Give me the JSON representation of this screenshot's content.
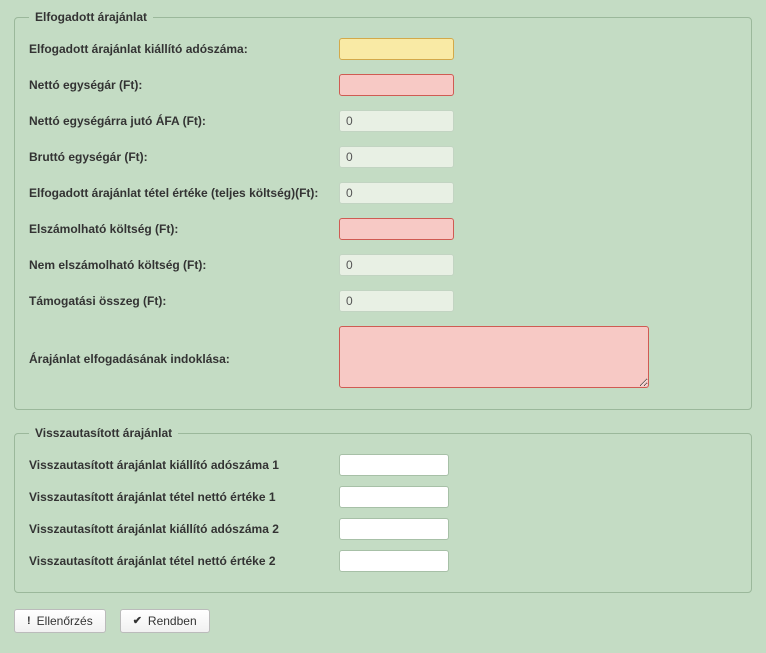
{
  "accepted": {
    "legend": "Elfogadott árajánlat",
    "fields": {
      "issuer_tax": {
        "label": "Elfogadott árajánlat kiállító adószáma:",
        "value": ""
      },
      "net_unit": {
        "label": "Nettó egységár (Ft):",
        "value": ""
      },
      "net_vat": {
        "label": "Nettó egységárra jutó ÁFA (Ft):",
        "value": "0"
      },
      "gross_unit": {
        "label": "Bruttó egységár (Ft):",
        "value": "0"
      },
      "item_total": {
        "label": "Elfogadott árajánlat tétel értéke (teljes költség)(Ft):",
        "value": "0"
      },
      "eligible": {
        "label": "Elszámolható költség (Ft):",
        "value": ""
      },
      "ineligible": {
        "label": "Nem elszámolható költség (Ft):",
        "value": "0"
      },
      "support": {
        "label": "Támogatási összeg (Ft):",
        "value": "0"
      },
      "justification": {
        "label": "Árajánlat elfogadásának indoklása:",
        "value": ""
      }
    }
  },
  "rejected": {
    "legend": "Visszautasított árajánlat",
    "fields": {
      "tax1": {
        "label": "Visszautasított árajánlat kiállító adószáma 1",
        "value": ""
      },
      "net1": {
        "label": "Visszautasított árajánlat tétel nettó értéke 1",
        "value": ""
      },
      "tax2": {
        "label": "Visszautasított árajánlat kiállító adószáma 2",
        "value": ""
      },
      "net2": {
        "label": "Visszautasított árajánlat tétel nettó értéke 2",
        "value": ""
      }
    }
  },
  "buttons": {
    "check": "Ellenőrzés",
    "ok": "Rendben"
  }
}
